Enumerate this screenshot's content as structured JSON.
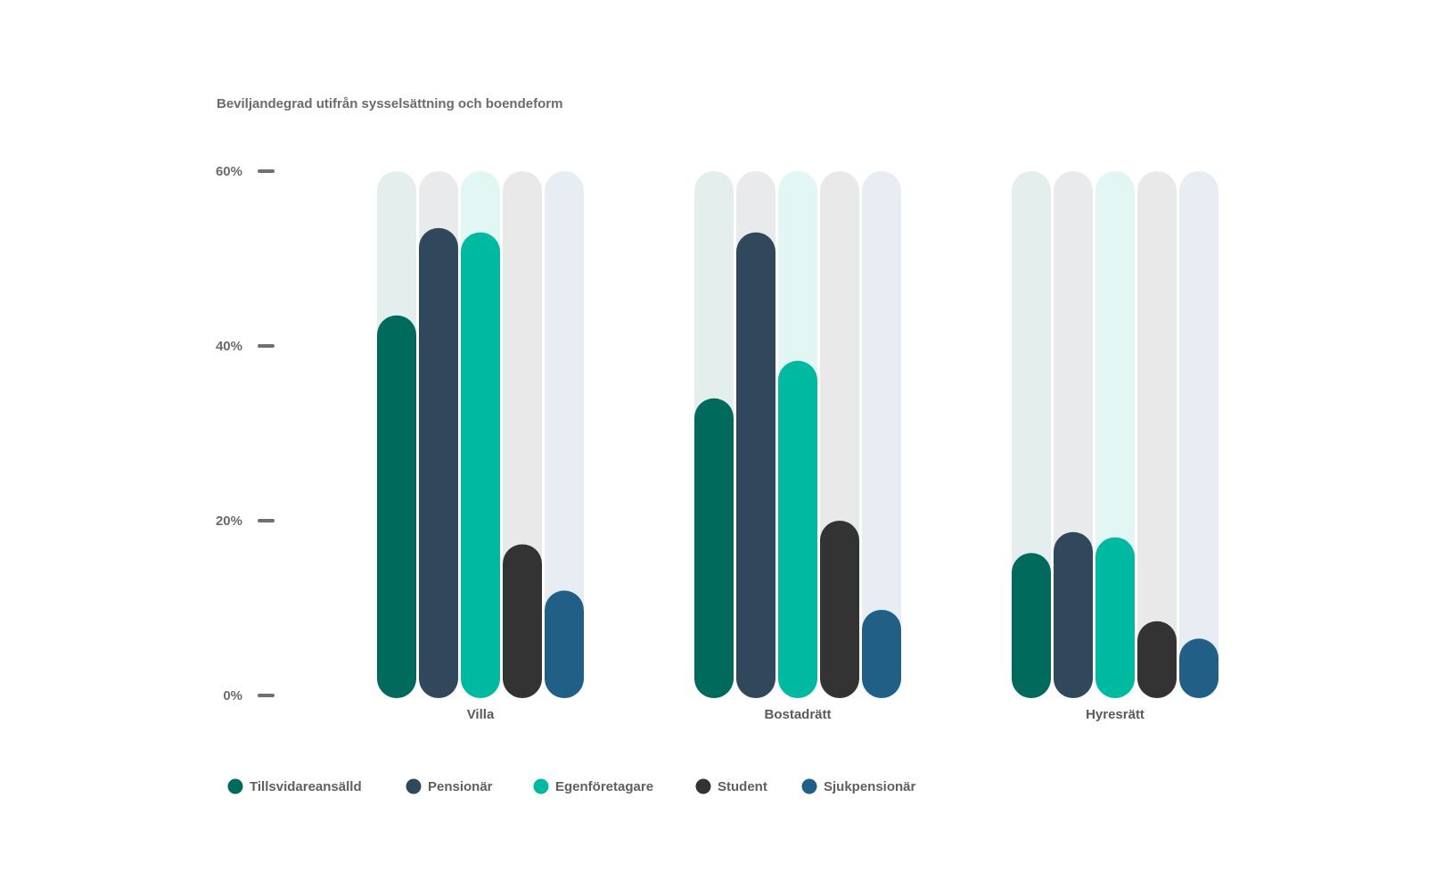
{
  "chart_data": {
    "type": "bar",
    "title": "Beviljandegrad utifrån sysselsättning och boendeform",
    "xlabel": "",
    "ylabel": "",
    "ylim": [
      0,
      60
    ],
    "yticks": [
      {
        "value": 0,
        "label": "0%"
      },
      {
        "value": 20,
        "label": "20%"
      },
      {
        "value": 40,
        "label": "40%"
      },
      {
        "value": 60,
        "label": "60%"
      }
    ],
    "categories": [
      "Villa",
      "Bostadrätt",
      "Hyresrätt"
    ],
    "legend_position": "bottom-left",
    "series": [
      {
        "name": "Tillsvidareansälld",
        "color": "#006b5c",
        "track": "#e3eeed",
        "values": [
          43.5,
          34,
          16.3
        ]
      },
      {
        "name": "Pensionär",
        "color": "#31475c",
        "track": "#e9eaec",
        "values": [
          53.5,
          53,
          18.7
        ]
      },
      {
        "name": "Egenföretagare",
        "color": "#00b9a1",
        "track": "#e2f6f3",
        "values": [
          53,
          38.3,
          18.1
        ]
      },
      {
        "name": "Student",
        "color": "#333333",
        "track": "#e9e9e9",
        "values": [
          17.3,
          20,
          8.5
        ]
      },
      {
        "name": "Sjukpensionär",
        "color": "#225f87",
        "track": "#e8edf4",
        "values": [
          12,
          9.8,
          6.5
        ]
      }
    ]
  }
}
